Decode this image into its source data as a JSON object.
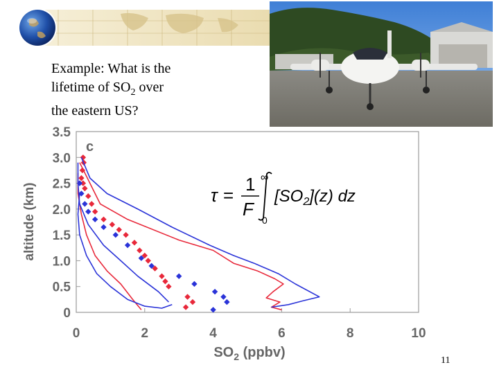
{
  "slide": {
    "question_line1": "Example: What is the",
    "question_line2_pre": "lifetime of SO",
    "question_line2_sub": "2",
    "question_line2_post": " over",
    "question_line3": "the eastern US?",
    "slide_number": "11",
    "equation": {
      "tau": "τ",
      "equals": "=",
      "numerator": "1",
      "denominator": "F",
      "upper_limit": "∞",
      "lower_limit": "0",
      "integrand_open": "[SO",
      "integrand_sub": "2",
      "integrand_close": "](z) dz"
    }
  },
  "chart_data": {
    "type": "line",
    "panel_label": "c",
    "xlabel": "SO",
    "xlabel_sub": "2",
    "xlabel_unit": " (ppbv)",
    "ylabel": "altitude (km)",
    "xlim": [
      0,
      10
    ],
    "ylim": [
      0,
      3.5
    ],
    "xticks": [
      "0",
      "2",
      "4",
      "6",
      "8",
      "10"
    ],
    "yticks": [
      "0",
      "0.5",
      "1.0",
      "1.5",
      "2.0",
      "2.5",
      "3.0",
      "3.5"
    ],
    "grid": false,
    "colors": {
      "red": "#e8283a",
      "blue": "#2a33d8"
    },
    "series": [
      {
        "color": "red",
        "style": "markers",
        "points": [
          [
            3.2,
            0.1
          ],
          [
            3.4,
            0.2
          ],
          [
            3.25,
            0.3
          ],
          [
            2.7,
            0.5
          ],
          [
            2.6,
            0.6
          ],
          [
            2.5,
            0.7
          ],
          [
            2.3,
            0.85
          ],
          [
            2.1,
            1.0
          ],
          [
            2.0,
            1.1
          ],
          [
            1.85,
            1.2
          ],
          [
            1.7,
            1.35
          ],
          [
            1.45,
            1.5
          ],
          [
            1.25,
            1.6
          ],
          [
            1.05,
            1.7
          ],
          [
            0.8,
            1.8
          ],
          [
            0.55,
            1.95
          ],
          [
            0.45,
            2.1
          ],
          [
            0.35,
            2.25
          ],
          [
            0.25,
            2.4
          ],
          [
            0.2,
            2.5
          ],
          [
            0.15,
            2.6
          ],
          [
            0.18,
            2.75
          ],
          [
            0.22,
            2.9
          ],
          [
            0.2,
            3.0
          ]
        ]
      },
      {
        "color": "blue",
        "style": "markers",
        "points": [
          [
            4.0,
            0.05
          ],
          [
            4.4,
            0.2
          ],
          [
            4.3,
            0.3
          ],
          [
            4.05,
            0.4
          ],
          [
            3.45,
            0.55
          ],
          [
            3.0,
            0.7
          ],
          [
            2.2,
            0.9
          ],
          [
            1.9,
            1.05
          ],
          [
            1.5,
            1.3
          ],
          [
            1.15,
            1.5
          ],
          [
            0.8,
            1.65
          ],
          [
            0.55,
            1.8
          ],
          [
            0.35,
            1.95
          ],
          [
            0.25,
            2.1
          ],
          [
            0.15,
            2.3
          ],
          [
            0.1,
            2.5
          ]
        ]
      },
      {
        "color": "red",
        "style": "line",
        "points": [
          [
            0.1,
            2.9
          ],
          [
            0.4,
            2.5
          ],
          [
            0.7,
            2.1
          ],
          [
            1.5,
            1.8
          ],
          [
            3.0,
            1.4
          ],
          [
            4.0,
            1.2
          ],
          [
            4.6,
            0.95
          ],
          [
            5.3,
            0.8
          ],
          [
            5.8,
            0.65
          ],
          [
            6.05,
            0.55
          ],
          [
            5.75,
            0.4
          ],
          [
            5.55,
            0.28
          ],
          [
            5.95,
            0.2
          ],
          [
            5.7,
            0.1
          ],
          [
            6.0,
            0.05
          ]
        ]
      },
      {
        "color": "red",
        "style": "line",
        "points": [
          [
            0.05,
            2.7
          ],
          [
            0.05,
            2.3
          ],
          [
            0.15,
            1.9
          ],
          [
            0.3,
            1.5
          ],
          [
            0.55,
            1.1
          ],
          [
            0.9,
            0.8
          ],
          [
            1.3,
            0.55
          ],
          [
            1.65,
            0.25
          ],
          [
            1.9,
            0.05
          ]
        ]
      },
      {
        "color": "blue",
        "style": "line",
        "points": [
          [
            0.15,
            3.0
          ],
          [
            0.4,
            2.6
          ],
          [
            0.9,
            2.3
          ],
          [
            1.8,
            2.0
          ],
          [
            2.8,
            1.65
          ],
          [
            3.9,
            1.3
          ],
          [
            4.6,
            1.1
          ],
          [
            5.2,
            0.95
          ],
          [
            5.9,
            0.75
          ],
          [
            6.4,
            0.55
          ],
          [
            7.1,
            0.3
          ],
          [
            6.6,
            0.22
          ],
          [
            6.2,
            0.15
          ],
          [
            5.7,
            0.1
          ]
        ]
      },
      {
        "color": "blue",
        "style": "line",
        "points": [
          [
            0.1,
            2.3
          ],
          [
            0.05,
            1.9
          ],
          [
            0.1,
            1.5
          ],
          [
            0.3,
            1.1
          ],
          [
            0.6,
            0.75
          ],
          [
            1.0,
            0.5
          ],
          [
            1.5,
            0.25
          ],
          [
            2.0,
            0.12
          ],
          [
            2.5,
            0.08
          ],
          [
            2.8,
            0.15
          ]
        ]
      },
      {
        "color": "blue",
        "style": "line",
        "points": [
          [
            0.05,
            2.9
          ],
          [
            0.05,
            2.5
          ],
          [
            0.1,
            2.1
          ],
          [
            0.35,
            1.7
          ],
          [
            0.8,
            1.3
          ],
          [
            1.3,
            1.0
          ],
          [
            1.8,
            0.7
          ],
          [
            2.4,
            0.4
          ],
          [
            2.7,
            0.2
          ]
        ]
      }
    ]
  }
}
